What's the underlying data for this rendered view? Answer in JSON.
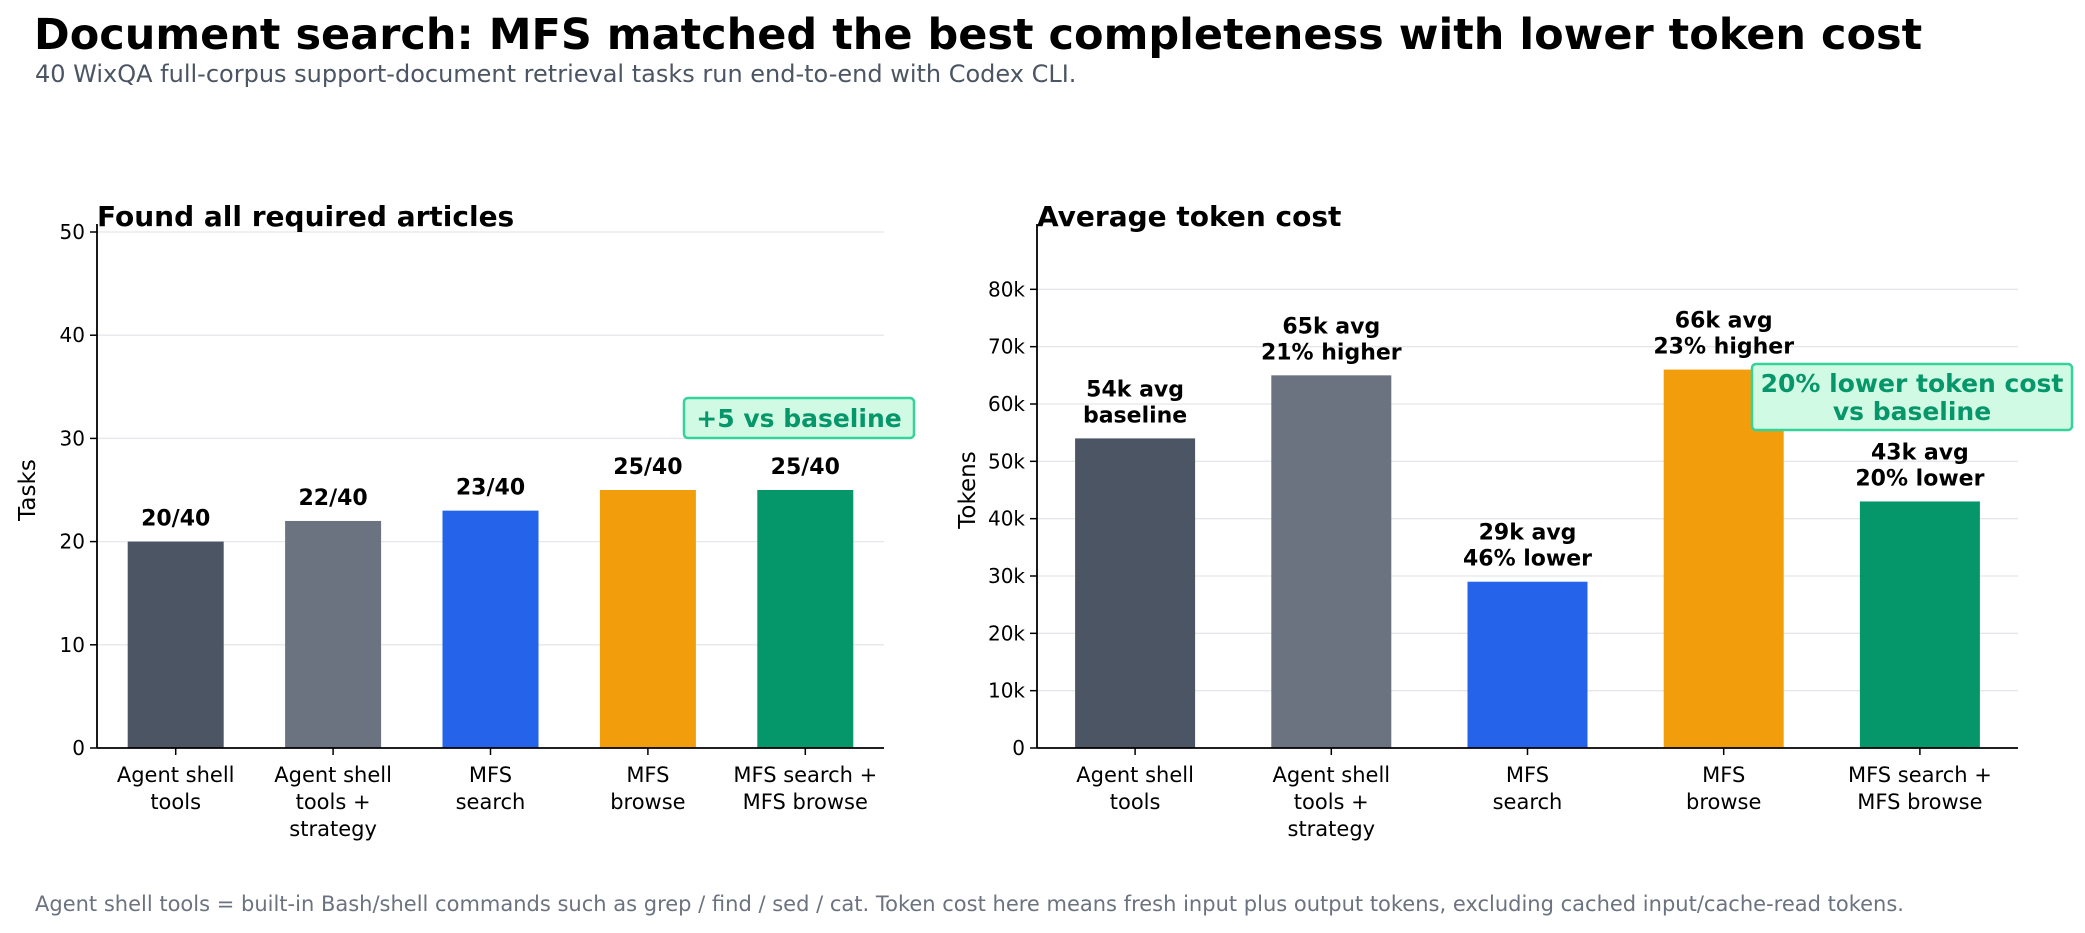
{
  "title": "Document search: MFS matched the best completeness with lower token cost",
  "subtitle": "40 WixQA full-corpus support-document retrieval tasks run end-to-end with Codex CLI.",
  "footnote": "Agent shell tools = built-in Bash/shell commands such as grep / find / sed / cat. Token cost here means fresh input plus output tokens, excluding cached input/cache-read tokens.",
  "colors": {
    "agent_shell_tools": "#4b5563",
    "agent_shell_strategy": "#6b7280",
    "mfs_search": "#2563eb",
    "mfs_browse": "#f29e0c",
    "mfs_search_browse": "#059669",
    "callout_text": "#059669",
    "callout_fill": "#d1fae5",
    "callout_border": "#34d399",
    "grid": "#e5e7eb"
  },
  "chart_data": [
    {
      "type": "bar",
      "title": "Found all required articles",
      "xlabel": "",
      "ylabel": "Tasks",
      "ylim": [
        0,
        50
      ],
      "yticks": [
        0,
        10,
        20,
        30,
        40,
        50
      ],
      "ytick_labels": [
        "0",
        "10",
        "20",
        "30",
        "40",
        "50"
      ],
      "grid": true,
      "categories": [
        [
          "Agent shell",
          "tools"
        ],
        [
          "Agent shell",
          "tools +",
          "strategy"
        ],
        [
          "MFS",
          "search"
        ],
        [
          "MFS",
          "browse"
        ],
        [
          "MFS search +",
          "MFS browse"
        ]
      ],
      "values": [
        20,
        22,
        23,
        25,
        25
      ],
      "data_labels": [
        [
          "20/40"
        ],
        [
          "22/40"
        ],
        [
          "23/40"
        ],
        [
          "25/40"
        ],
        [
          "25/40"
        ]
      ],
      "callout": "+5 vs baseline"
    },
    {
      "type": "bar",
      "title": "Average token cost",
      "xlabel": "",
      "ylabel": "Tokens",
      "ylim": [
        0,
        90000
      ],
      "yticks": [
        0,
        10000,
        20000,
        30000,
        40000,
        50000,
        60000,
        70000,
        80000
      ],
      "ytick_labels": [
        "0",
        "10k",
        "20k",
        "30k",
        "40k",
        "50k",
        "60k",
        "70k",
        "80k"
      ],
      "grid": true,
      "categories": [
        [
          "Agent shell",
          "tools"
        ],
        [
          "Agent shell",
          "tools +",
          "strategy"
        ],
        [
          "MFS",
          "search"
        ],
        [
          "MFS",
          "browse"
        ],
        [
          "MFS search +",
          "MFS browse"
        ]
      ],
      "values": [
        54000,
        65000,
        29000,
        66000,
        43000
      ],
      "data_labels": [
        [
          "54k avg",
          "baseline"
        ],
        [
          "65k avg",
          "21% higher"
        ],
        [
          "29k avg",
          "46% lower"
        ],
        [
          "66k avg",
          "23% higher"
        ],
        [
          "43k avg",
          "20% lower"
        ]
      ],
      "callout": [
        "20% lower token cost",
        "vs baseline"
      ]
    }
  ]
}
